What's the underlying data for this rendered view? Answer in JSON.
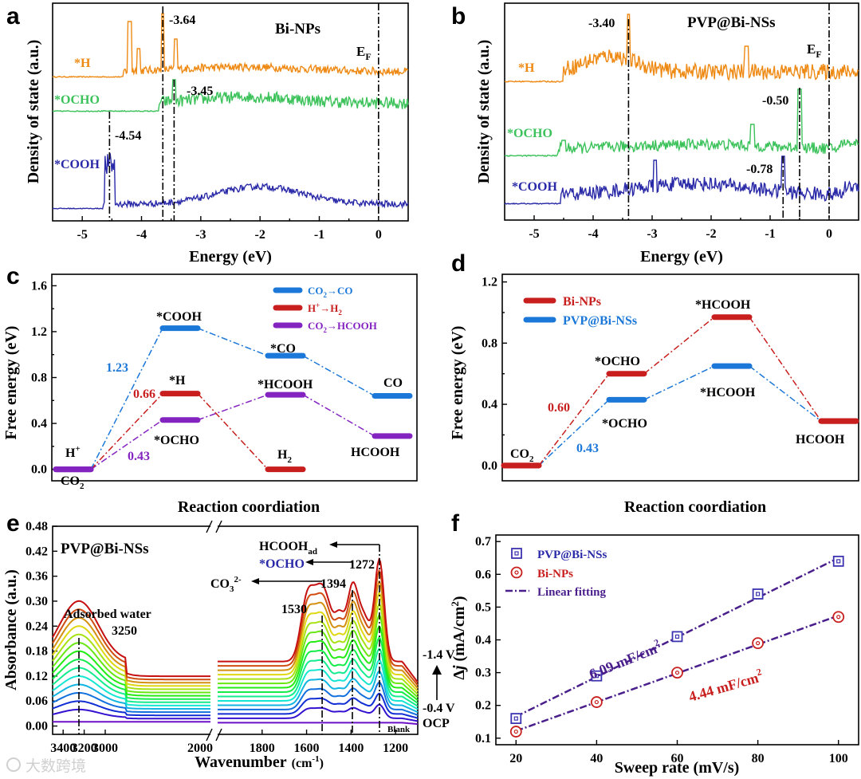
{
  "colors": {
    "orange": "#ee8a14",
    "green": "#3cc25a",
    "navy": "#2a2aa8",
    "blue": "#1c78d8",
    "red": "#c81e1e",
    "purple": "#8424c0",
    "purpleFit": "#4a1f8c"
  },
  "watermark": "大数跨境",
  "chart_data": [
    {
      "panel": "a",
      "type": "line",
      "title": "Bi-NPs",
      "xlabel": "Energy (eV)",
      "ylabel": "Density of state (a.u.)",
      "xlim": [
        -5.5,
        0.5
      ],
      "xticks": [
        "-5",
        "-4",
        "-3",
        "-2",
        "-1",
        "0"
      ],
      "fermi_label": "E",
      "fermi_sub": "F",
      "series": [
        {
          "name": "*H",
          "color": "orange",
          "peak": -3.64,
          "peak_label": "-3.64"
        },
        {
          "name": "*OCHO",
          "color": "green",
          "peak": -3.45,
          "peak_label": "-3.45"
        },
        {
          "name": "*COOH",
          "color": "navy",
          "peak": -4.54,
          "peak_label": "-4.54"
        }
      ]
    },
    {
      "panel": "b",
      "type": "line",
      "title": "PVP@Bi-NSs",
      "xlabel": "Energy (eV)",
      "ylabel": "Density of state (a.u.)",
      "xlim": [
        -5.5,
        0.5
      ],
      "xticks": [
        "-5",
        "-4",
        "-3",
        "-2",
        "-1",
        "0"
      ],
      "fermi_label": "E",
      "fermi_sub": "F",
      "series": [
        {
          "name": "*H",
          "color": "orange",
          "peak": -3.4,
          "peak_label": "-3.40"
        },
        {
          "name": "*OCHO",
          "color": "green",
          "peak": -0.5,
          "peak_label": "-0.50"
        },
        {
          "name": "*COOH",
          "color": "navy",
          "peak": -0.78,
          "peak_label": "-0.78"
        }
      ]
    },
    {
      "panel": "c",
      "type": "line",
      "xlabel": "Reaction coordiation",
      "ylabel": "Free energy (eV)",
      "ylim": [
        -0.1,
        1.7
      ],
      "yticks": [
        "0.0",
        "0.4",
        "0.8",
        "1.2",
        "1.6"
      ],
      "legend": [
        {
          "label": "CO",
          "sub": "2",
          "arrow": "→",
          "tail": "CO",
          "color": "blue"
        },
        {
          "label": "H",
          "sup": "+",
          "arrow": "→",
          "tail": "H",
          "tailsub": "2",
          "color": "red"
        },
        {
          "label": "CO",
          "sub": "2",
          "arrow": "→",
          "tail": "HCOOH",
          "color": "purple"
        }
      ],
      "series": [
        {
          "name": "CO2→CO",
          "color": "blue",
          "levels": [
            0,
            1.23,
            0.99,
            0.64
          ]
        },
        {
          "name": "H+→H2",
          "color": "red",
          "levels": [
            0,
            0.66,
            0
          ]
        },
        {
          "name": "CO2→HCOOH",
          "color": "purple",
          "levels": [
            0,
            0.43,
            0.65,
            0.29
          ]
        }
      ],
      "labels": {
        "cooh": "*COOH",
        "co": "*CO",
        "co_end": "CO",
        "h": "*H",
        "h2": "H",
        "h2sub": "2",
        "ocho": "*OCHO",
        "hcooh": "*HCOOH",
        "hcooh_end": "HCOOH",
        "hplus": "H",
        "hplus_sup": "+",
        "co2": "CO",
        "co2_sub": "2",
        "val_blue": "1.23",
        "val_red": "0.66",
        "val_purple": "0.43"
      }
    },
    {
      "panel": "d",
      "type": "line",
      "xlabel": "Reaction coordiation",
      "ylabel": "Free energy (eV)",
      "ylim": [
        -0.1,
        1.25
      ],
      "yticks": [
        "0.0",
        "0.4",
        "0.8",
        "1.2"
      ],
      "legend": [
        {
          "label": "Bi-NPs",
          "color": "red"
        },
        {
          "label": "PVP@Bi-NSs",
          "color": "blue"
        }
      ],
      "series": [
        {
          "name": "Bi-NPs",
          "color": "red",
          "levels": [
            0,
            0.6,
            0.97,
            0.29
          ]
        },
        {
          "name": "PVP@Bi-NSs",
          "color": "blue",
          "levels": [
            0,
            0.43,
            0.65,
            0.29
          ]
        }
      ],
      "labels": {
        "ocho": "*OCHO",
        "hcooh": "*HCOOH",
        "hcooh_end": "HCOOH",
        "co2": "CO",
        "co2_sub": "2",
        "val_red": "0.60",
        "val_blue": "0.43"
      }
    },
    {
      "panel": "e",
      "type": "line",
      "title": "PVP@Bi-NSs",
      "xlabel": "Wavenumber",
      "xlabel_unit": "(cm",
      "xlabel_sup": "-1",
      "xlabel_end": ")",
      "ylabel": "Absorbance (a.u.)",
      "ylim": [
        -0.02,
        0.48
      ],
      "yticks": [
        "0.00",
        "0.06",
        "0.12",
        "0.18",
        "0.24",
        "0.30",
        "0.36",
        "0.42",
        "0.48"
      ],
      "xticks_left": [
        "3400",
        "3200",
        "3000",
        "2000"
      ],
      "xticks_right": [
        "1800",
        "1600",
        "1400",
        "1200"
      ],
      "annotations": {
        "water": "Adsorbed water",
        "w3250": "3250",
        "hcooh": "HCOOH",
        "hcooh_sub": "ad",
        "p1272": "1272",
        "ocho": "*OCHO",
        "p1394": "1394",
        "co3": "CO",
        "co3_sub": "3",
        "co3_sup": "2-",
        "p1530": "1530",
        "v_high": "-1.4 V",
        "v_low": "-0.4 V",
        "ocp": "OCP",
        "blank": "Blank"
      },
      "peaks": [
        3250,
        1530,
        1394,
        1272
      ],
      "curve_count": 15
    },
    {
      "panel": "f",
      "type": "scatter",
      "xlabel": "Sweep rate (mV/s)",
      "ylabel": "Δj (mA/cm²)",
      "ylabel_parts": {
        "delta": "Δ",
        "j": "j",
        "unit": " (mA/cm",
        "sup": "2",
        "end": ")"
      },
      "xlim": [
        15,
        105
      ],
      "ylim": [
        0.08,
        0.72
      ],
      "xticks": [
        "20",
        "40",
        "60",
        "80",
        "100"
      ],
      "yticks": [
        "0.1",
        "0.2",
        "0.3",
        "0.4",
        "0.5",
        "0.6",
        "0.7"
      ],
      "x": [
        20,
        40,
        60,
        80,
        100
      ],
      "series": [
        {
          "name": "PVP@Bi-NSs",
          "color": "purpleFit",
          "values": [
            0.16,
            0.29,
            0.41,
            0.54,
            0.64
          ],
          "marker": "square"
        },
        {
          "name": "Bi-NPs",
          "color": "red",
          "values": [
            0.12,
            0.21,
            0.3,
            0.39,
            0.47
          ],
          "marker": "circle"
        }
      ],
      "legend": [
        "PVP@Bi-NSs",
        "Bi-NPs",
        "Linear fitting"
      ],
      "slopes": {
        "top": "6.09 mF/cm",
        "bottom": "4.44 mF/cm",
        "sup": "2"
      }
    }
  ],
  "panels": [
    "a",
    "b",
    "c",
    "d",
    "e",
    "f"
  ]
}
